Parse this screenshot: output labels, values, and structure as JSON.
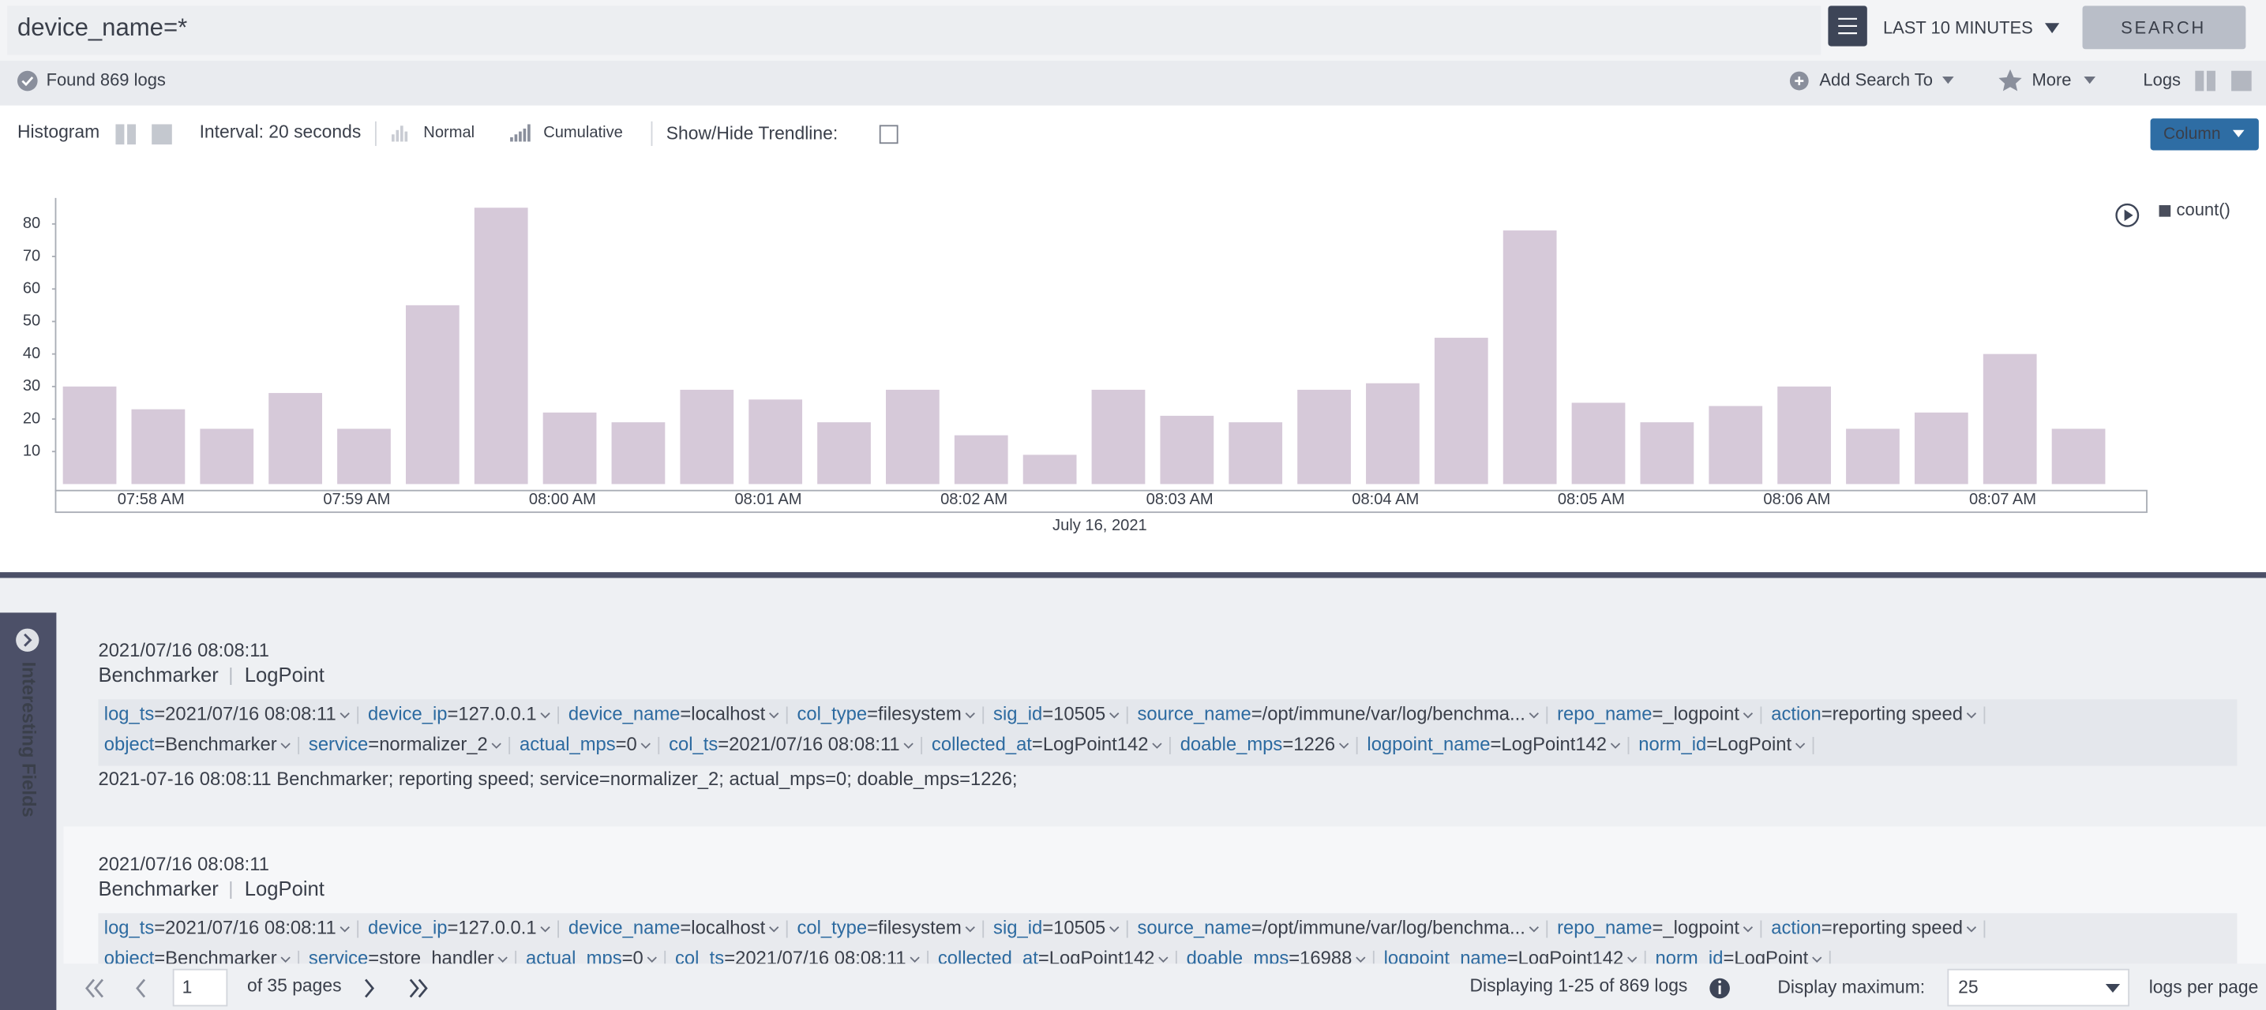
{
  "search": {
    "query": "device_name=*",
    "time_range": "LAST 10 MINUTES",
    "button": "SEARCH"
  },
  "status": {
    "found": "Found 869 logs",
    "add_search_to": "Add Search To",
    "more": "More",
    "logs": "Logs"
  },
  "histogram_toolbar": {
    "histogram": "Histogram",
    "interval": "Interval: 20 seconds",
    "normal": "Normal",
    "cumulative": "Cumulative",
    "trendline": "Show/Hide Trendline:",
    "column": "Column"
  },
  "chart_data": {
    "type": "bar",
    "xlabel": "July 16, 2021",
    "categories": [
      null,
      "07:58 AM",
      null,
      null,
      "07:59 AM",
      null,
      null,
      "08:00 AM",
      null,
      null,
      "08:01 AM",
      null,
      null,
      "08:02 AM",
      null,
      null,
      "08:03 AM",
      null,
      null,
      "08:04 AM",
      null,
      null,
      "08:05 AM",
      null,
      null,
      "08:06 AM",
      null,
      null,
      "08:07 AM",
      null
    ],
    "series": [
      {
        "name": "count()",
        "color": "#d6c9d9",
        "values": [
          30,
          23,
          17,
          28,
          17,
          55,
          85,
          22,
          19,
          29,
          26,
          19,
          29,
          15,
          9,
          29,
          21,
          19,
          29,
          31,
          45,
          78,
          25,
          19,
          24,
          30,
          17,
          22,
          40,
          17
        ]
      }
    ],
    "ylim": [
      0,
      88
    ],
    "yticks": [
      10,
      20,
      30,
      40,
      50,
      60,
      70,
      80
    ],
    "grid": false
  },
  "sidebar": {
    "title": "Interesting Fields"
  },
  "logs": [
    {
      "timestamp": "2021/07/16 08:08:11",
      "device": "Benchmarker",
      "source": "LogPoint",
      "field_rows": [
        [
          {
            "key": "log_ts",
            "value": "=2021/07/16 08:08:11"
          },
          {
            "key": "device_ip",
            "value": "=127.0.0.1"
          },
          {
            "key": "device_name",
            "value": "=localhost"
          },
          {
            "key": "col_type",
            "value": "=filesystem"
          },
          {
            "key": "sig_id",
            "value": "=10505"
          },
          {
            "key": "source_name",
            "value": "=/opt/immune/var/log/benchma..."
          },
          {
            "key": "repo_name",
            "value": "=_logpoint"
          },
          {
            "key": "action",
            "value": "=reporting speed"
          }
        ],
        [
          {
            "key": "object",
            "value": "=Benchmarker"
          },
          {
            "key": "service",
            "value": "=normalizer_2"
          },
          {
            "key": "actual_mps",
            "value": "=0"
          },
          {
            "key": "col_ts",
            "value": "=2021/07/16 08:08:11"
          },
          {
            "key": "collected_at",
            "value": "=LogPoint142"
          },
          {
            "key": "doable_mps",
            "value": "=1226"
          },
          {
            "key": "logpoint_name",
            "value": "=LogPoint142"
          },
          {
            "key": "norm_id",
            "value": "=LogPoint"
          }
        ]
      ],
      "message": "2021-07-16 08:08:11 Benchmarker; reporting speed; service=normalizer_2; actual_mps=0; doable_mps=1226;"
    },
    {
      "timestamp": "2021/07/16 08:08:11",
      "device": "Benchmarker",
      "source": "LogPoint",
      "field_rows": [
        [
          {
            "key": "log_ts",
            "value": "=2021/07/16 08:08:11"
          },
          {
            "key": "device_ip",
            "value": "=127.0.0.1"
          },
          {
            "key": "device_name",
            "value": "=localhost"
          },
          {
            "key": "col_type",
            "value": "=filesystem"
          },
          {
            "key": "sig_id",
            "value": "=10505"
          },
          {
            "key": "source_name",
            "value": "=/opt/immune/var/log/benchma..."
          },
          {
            "key": "repo_name",
            "value": "=_logpoint"
          },
          {
            "key": "action",
            "value": "=reporting speed"
          }
        ],
        [
          {
            "key": "object",
            "value": "=Benchmarker"
          },
          {
            "key": "service",
            "value": "=store_handler"
          },
          {
            "key": "actual_mps",
            "value": "=0"
          },
          {
            "key": "col_ts",
            "value": "=2021/07/16 08:08:11"
          },
          {
            "key": "collected_at",
            "value": "=LogPoint142"
          },
          {
            "key": "doable_mps",
            "value": "=16988"
          },
          {
            "key": "logpoint_name",
            "value": "=LogPoint142"
          },
          {
            "key": "norm_id",
            "value": "=LogPoint"
          }
        ]
      ]
    }
  ],
  "pagination": {
    "page": "1",
    "of_pages": "of 35 pages",
    "displaying": "Displaying 1-25 of 869 logs",
    "display_maximum": "Display maximum:",
    "per_page_value": "25",
    "per_page": "logs per page"
  }
}
